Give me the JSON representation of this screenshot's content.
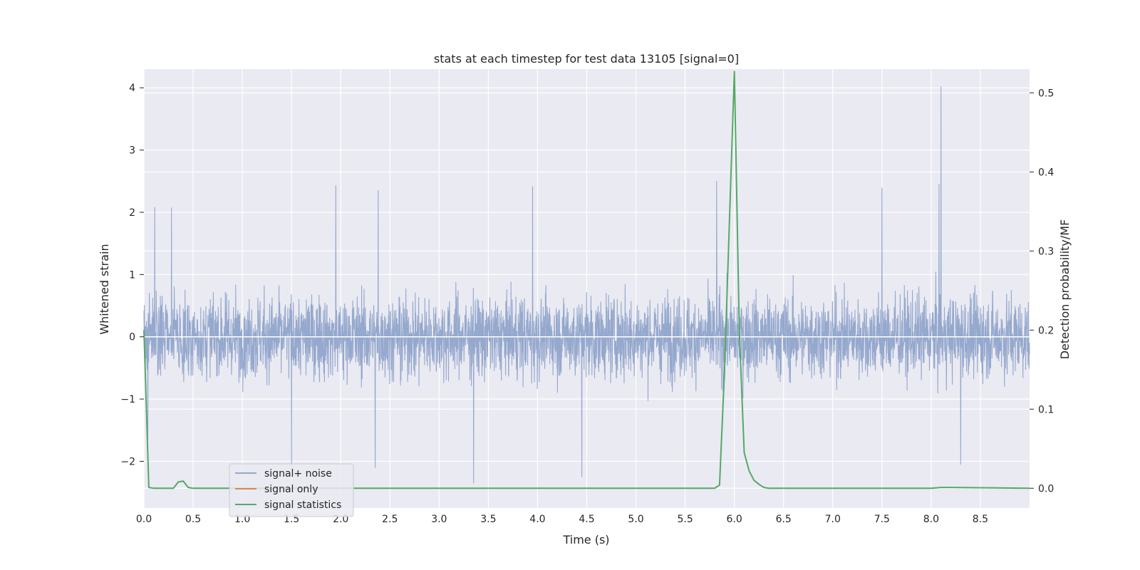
{
  "colors": {
    "background": "#ffffff",
    "plot_background": "#eaeaf2",
    "grid": "#ffffff",
    "signal_noise": "#95a8cd",
    "signal_only": "#dd8452",
    "signal_statistics": "#55a868",
    "text": "#262626"
  },
  "chart_data": {
    "type": "line",
    "title": "stats at each timestep for test data 13105 [signal=0]",
    "xlabel": "Time (s)",
    "ylabel": "Whitened strain",
    "y2label": "Detection probability/MF",
    "xlim": [
      0.0,
      9.0
    ],
    "ylim": [
      -2.75,
      4.3
    ],
    "y2lim": [
      -0.025,
      0.53
    ],
    "x_ticks": [
      0.0,
      0.5,
      1.0,
      1.5,
      2.0,
      2.5,
      3.0,
      3.5,
      4.0,
      4.5,
      5.0,
      5.5,
      6.0,
      6.5,
      7.0,
      7.5,
      8.0,
      8.5
    ],
    "x_tick_labels": [
      "0.0",
      "0.5",
      "1.0",
      "1.5",
      "2.0",
      "2.5",
      "3.0",
      "3.5",
      "4.0",
      "4.5",
      "5.0",
      "5.5",
      "6.0",
      "6.5",
      "7.0",
      "7.5",
      "8.0",
      "8.5"
    ],
    "y_ticks": [
      -2,
      -1,
      0,
      1,
      2,
      3,
      4
    ],
    "y_tick_labels": [
      "−2",
      "−1",
      "0",
      "1",
      "2",
      "3",
      "4"
    ],
    "y2_ticks": [
      0.0,
      0.1,
      0.2,
      0.3,
      0.4,
      0.5
    ],
    "y2_tick_labels": [
      "0.0",
      "0.1",
      "0.2",
      "0.3",
      "0.4",
      "0.5"
    ],
    "grid": true,
    "legend_position": "lower-left",
    "legend": [
      "signal+ noise",
      "signal only",
      "signal statistics"
    ],
    "series": [
      {
        "name": "signal+ noise",
        "axis": "left",
        "style": "dense noise",
        "noise_std": 0.55,
        "envelope_typical": [
          -1.3,
          1.3
        ],
        "peaks": [
          {
            "x": 0.11,
            "y": 2.08
          },
          {
            "x": 0.28,
            "y": 2.07
          },
          {
            "x": 1.95,
            "y": 2.43
          },
          {
            "x": 2.38,
            "y": 2.35
          },
          {
            "x": 3.95,
            "y": 2.41
          },
          {
            "x": 5.82,
            "y": 2.5
          },
          {
            "x": 7.5,
            "y": 2.39
          },
          {
            "x": 8.1,
            "y": 4.02
          },
          {
            "x": 8.08,
            "y": 2.45
          },
          {
            "x": 3.35,
            "y": -2.35
          },
          {
            "x": 4.45,
            "y": -2.25
          },
          {
            "x": 1.5,
            "y": -2.1
          },
          {
            "x": 2.35,
            "y": -2.1
          },
          {
            "x": 8.3,
            "y": -2.05
          },
          {
            "x": 0.04,
            "y": -1.65
          }
        ]
      },
      {
        "name": "signal only",
        "axis": "left",
        "x": [
          0.0,
          9.0
        ],
        "y": [
          0.0,
          0.0
        ]
      },
      {
        "name": "signal statistics",
        "axis": "right",
        "x": [
          0.0,
          0.05,
          0.1,
          0.2,
          0.3,
          0.35,
          0.4,
          0.45,
          0.5,
          5.5,
          5.8,
          5.85,
          5.9,
          6.0,
          6.05,
          6.1,
          6.15,
          6.2,
          6.25,
          6.3,
          6.35,
          6.4,
          8.0,
          8.1,
          8.2,
          9.0
        ],
        "y": [
          0.2,
          0.001,
          0.0,
          0.0,
          0.0,
          0.008,
          0.009,
          0.001,
          0.0,
          0.0,
          0.0,
          0.004,
          0.15,
          0.527,
          0.2,
          0.045,
          0.022,
          0.01,
          0.005,
          0.001,
          0.0,
          0.0,
          0.0,
          0.001,
          0.001,
          0.0
        ]
      }
    ]
  }
}
